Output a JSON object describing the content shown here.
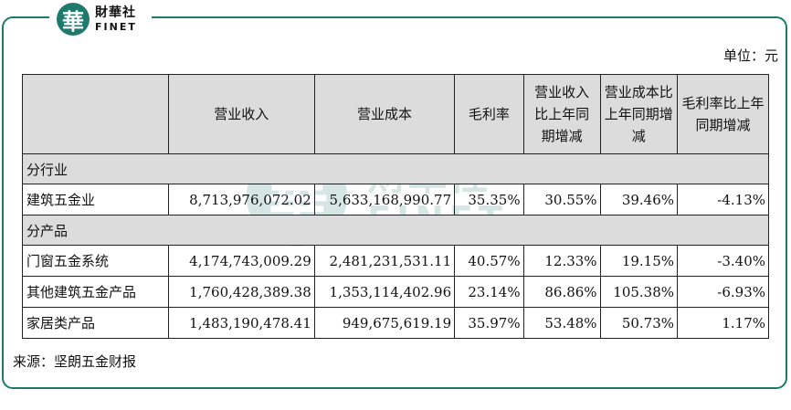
{
  "logo": {
    "mark": "華",
    "cn": "財華社",
    "en": "FINET"
  },
  "unit_label": "单位：元",
  "table": {
    "headers": [
      "",
      "营业收入",
      "营业成本",
      "毛利率",
      "营业收入比上年同期增减",
      "营业成本比上年同期增减",
      "毛利率比上年同期增减"
    ],
    "sections": [
      {
        "title": "分行业",
        "rows": [
          [
            "建筑五金业",
            "8,713,976,072.02",
            "5,633,168,990.77",
            "35.35%",
            "30.55%",
            "39.46%",
            "-4.13%"
          ]
        ]
      },
      {
        "title": "分产品",
        "rows": [
          [
            "门窗五金系统",
            "4,174,743,009.29",
            "2,481,231,531.11",
            "40.57%",
            "12.33%",
            "19.15%",
            "-3.40%"
          ],
          [
            "其他建筑五金产品",
            "1,760,428,389.38",
            "1,353,114,402.96",
            "23.14%",
            "86.86%",
            "105.38%",
            "-6.93%"
          ],
          [
            "家居类产品",
            "1,483,190,478.41",
            "949,675,619.19",
            "35.97%",
            "53.48%",
            "50.73%",
            "1.17%"
          ]
        ]
      }
    ]
  },
  "source": "来源：坚朗五金财报",
  "colors": {
    "frame": "#1f7a6c",
    "header_bg": "#dcdcdc"
  }
}
